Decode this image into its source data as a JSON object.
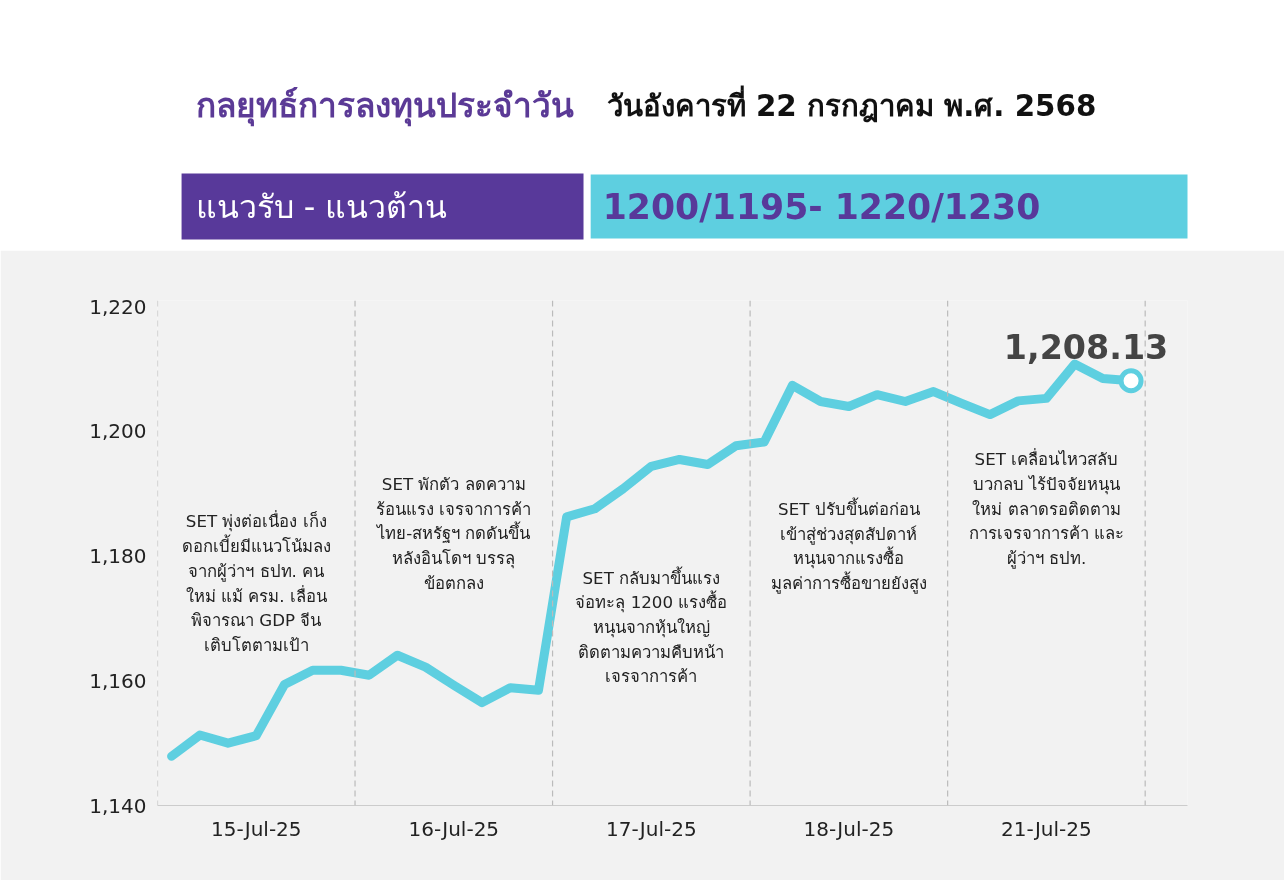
{
  "chart_data": {
    "type": "line",
    "title": "กลยุทธ์การลงทุนประจำวัน",
    "subtitle": "วันอังคารที่ 22 กรกฎาคม พ.ศ. 2568",
    "annotations": [
      "แนวรับ - แนวต้าน",
      "1200/1195- 1220/1230",
      "SET พุ่งต่อเนื่อง เก็ง\nดอกเบี้ยมีแนวโน้มลง\nจากผู้ว่าฯ ธปท. คน\nใหม่ แม้ ครม. เลื่อน\nพิจารณา GDP จีน\nเติบโตตามเป้า",
      "SET พักตัว ลดความ\nร้อนแรง เจรจาการค้า\nไทย-สหรัฐฯ กดดันขึ้น\nหลังอินโดฯ บรรลุ\nข้อตกลง",
      "SET กลับมาขึ้นแรง\nจ่อทะลุ 1200 แรงซื้อ\nหนุนจากหุ้นใหญ่\nติดตามความคืบหน้า\nเจรจาการค้า",
      "SET ปรับขึ้นต่อก่อน\nเข้าสู่ช่วงสุดสัปดาห์\nหนุนจากแรงซื้อ\nมูลค่าการซื้อขายยังสูง",
      "SET เคลื่อนไหวสลับ\nบวกลบ ไร้ปัจจัยหนุน\nใหม่ ตลาดรอติดตาม\nการเจรจาการค้า และ\nผู้ว่าฯ ธปท."
    ],
    "categories": [
      null,
      null,
      null,
      "15-Jul-25",
      null,
      null,
      null,
      null,
      null,
      null,
      "16-Jul-25",
      null,
      null,
      null,
      null,
      null,
      null,
      "17-Jul-25",
      null,
      null,
      null,
      null,
      null,
      null,
      "18-Jul-25",
      null,
      null,
      null,
      null,
      null,
      null,
      "21-Jul-25",
      null,
      null,
      null
    ],
    "series": [
      {
        "color": "#5ecfe0",
        "values": [
          1147.9,
          1151.3,
          1150.0,
          1151.2,
          1159.4,
          1161.7,
          1161.7,
          1160.9,
          1164.1,
          1162.2,
          1159.3,
          1156.5,
          1158.9,
          1158.5,
          1186.3,
          1187.6,
          1190.8,
          1194.4,
          1195.5,
          1194.7,
          1197.7,
          1198.3,
          1207.4,
          1204.8,
          1204.0,
          1205.9,
          1204.8,
          1206.4,
          1204.5,
          1202.7,
          1204.9,
          1205.3,
          1210.8,
          1208.5,
          1208.13
        ]
      },
      {
        "type": "scatter",
        "color": "#5ecfe0",
        "marker": "circle",
        "values": [
          null,
          null,
          null,
          null,
          null,
          null,
          null,
          null,
          null,
          null,
          null,
          null,
          null,
          null,
          null,
          null,
          null,
          null,
          null,
          null,
          null,
          null,
          null,
          null,
          null,
          null,
          null,
          null,
          null,
          null,
          null,
          null,
          null,
          null,
          1208.13
        ],
        "value_labels": [
          null,
          null,
          null,
          null,
          null,
          null,
          null,
          null,
          null,
          null,
          null,
          null,
          null,
          null,
          null,
          null,
          null,
          null,
          null,
          null,
          null,
          null,
          null,
          null,
          null,
          null,
          null,
          null,
          null,
          null,
          null,
          null,
          null,
          null,
          "1,208.13"
        ]
      }
    ],
    "ylim": [
      1140,
      1221
    ],
    "yticks": [
      {
        "value": 1140,
        "label": "1,140"
      },
      {
        "value": 1160,
        "label": "1,160"
      },
      {
        "value": 1180,
        "label": "1,180"
      },
      {
        "value": 1200,
        "label": "1,200"
      },
      {
        "value": 1220,
        "label": "1,220"
      }
    ],
    "grid": false
  }
}
